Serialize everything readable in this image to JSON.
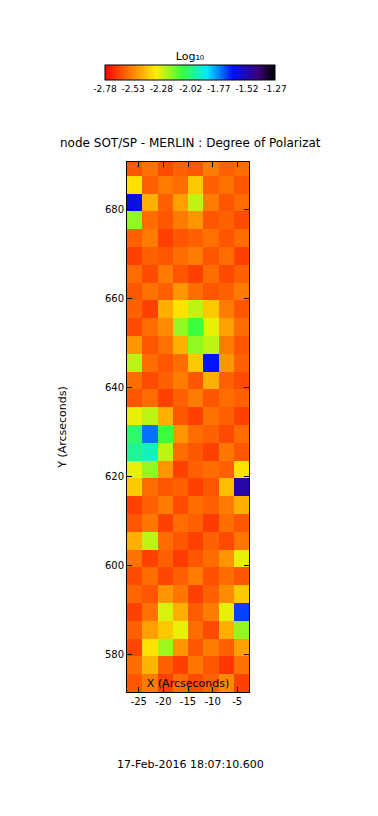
{
  "chart_data": {
    "type": "heatmap",
    "title": "node SOT/SP - MERLIN : Degree of Polarizat",
    "xlabel": "X (Arcseconds)",
    "ylabel": "Y (Arcseconds)",
    "annotations": [
      "17-Feb-2016 18:07:10.600"
    ],
    "xlim": [
      -27.4,
      -2.6
    ],
    "ylim": [
      571.5,
      690.6
    ],
    "xticks": [
      -25,
      -20,
      -15,
      -10,
      -5
    ],
    "yticks": [
      580,
      600,
      620,
      640,
      660,
      680
    ],
    "x": [
      -25.85,
      -22.75,
      -19.65,
      -16.55,
      -13.45,
      -10.35,
      -7.25,
      -4.15
    ],
    "y": [
      573.5,
      577.5,
      581.5,
      585.5,
      589.5,
      593.5,
      597.5,
      601.5,
      605.5,
      609.5,
      613.5,
      617.5,
      621.5,
      625.5,
      629.5,
      633.5,
      637.5,
      641.5,
      645.5,
      649.5,
      653.5,
      657.5,
      661.5,
      665.5,
      669.5,
      673.5,
      677.5,
      681.5,
      685.5,
      689.5
    ],
    "z": [
      [
        -2.62,
        -2.55,
        -2.66,
        -2.58,
        -2.64,
        -2.6,
        -2.52,
        -2.66
      ],
      [
        -2.58,
        -2.44,
        -2.6,
        -2.66,
        -2.56,
        -2.62,
        -2.68,
        -2.57
      ],
      [
        -2.65,
        -2.35,
        -2.22,
        -2.5,
        -2.62,
        -2.55,
        -2.6,
        -2.48
      ],
      [
        -2.6,
        -2.48,
        -2.4,
        -2.3,
        -2.58,
        -2.64,
        -2.45,
        -2.2
      ],
      [
        -2.66,
        -2.57,
        -2.28,
        -2.45,
        -2.61,
        -2.55,
        -2.3,
        -1.7
      ],
      [
        -2.59,
        -2.62,
        -2.5,
        -2.56,
        -2.66,
        -2.6,
        -2.52,
        -2.4
      ],
      [
        -2.64,
        -2.58,
        -2.65,
        -2.6,
        -2.55,
        -2.63,
        -2.58,
        -2.62
      ],
      [
        -2.57,
        -2.66,
        -2.6,
        -2.67,
        -2.62,
        -2.58,
        -2.5,
        -2.3
      ],
      [
        -2.45,
        -2.25,
        -2.58,
        -2.62,
        -2.66,
        -2.6,
        -2.64,
        -2.56
      ],
      [
        -2.62,
        -2.56,
        -2.66,
        -2.58,
        -2.6,
        -2.67,
        -2.58,
        -2.62
      ],
      [
        -2.66,
        -2.6,
        -2.55,
        -2.64,
        -2.58,
        -2.6,
        -2.55,
        -2.45
      ],
      [
        -2.4,
        -2.58,
        -2.62,
        -2.6,
        -2.66,
        -2.62,
        -2.42,
        -1.5
      ],
      [
        -2.3,
        -2.2,
        -2.5,
        -2.66,
        -2.6,
        -2.58,
        -2.6,
        -2.35
      ],
      [
        -2.0,
        -1.95,
        -2.25,
        -2.58,
        -2.62,
        -2.66,
        -2.56,
        -2.62
      ],
      [
        -2.05,
        -1.75,
        -2.1,
        -2.5,
        -2.58,
        -2.6,
        -2.64,
        -2.58
      ],
      [
        -2.3,
        -2.25,
        -2.45,
        -2.62,
        -2.66,
        -2.57,
        -2.6,
        -2.66
      ],
      [
        -2.62,
        -2.58,
        -2.66,
        -2.6,
        -2.55,
        -2.62,
        -2.58,
        -2.6
      ],
      [
        -2.58,
        -2.64,
        -2.6,
        -2.55,
        -2.62,
        -2.45,
        -2.6,
        -2.64
      ],
      [
        -2.25,
        -2.58,
        -2.62,
        -2.58,
        -2.4,
        -1.65,
        -2.5,
        -2.6
      ],
      [
        -2.5,
        -2.62,
        -2.57,
        -2.45,
        -2.2,
        -2.25,
        -2.55,
        -2.62
      ],
      [
        -2.64,
        -2.58,
        -2.52,
        -2.2,
        -2.1,
        -2.3,
        -2.48,
        -2.58
      ],
      [
        -2.6,
        -2.66,
        -2.45,
        -2.35,
        -2.25,
        -2.4,
        -2.55,
        -2.62
      ],
      [
        -2.62,
        -2.57,
        -2.6,
        -2.5,
        -2.58,
        -2.62,
        -2.6,
        -2.55
      ],
      [
        -2.58,
        -2.64,
        -2.55,
        -2.62,
        -2.66,
        -2.58,
        -2.64,
        -2.6
      ],
      [
        -2.66,
        -2.6,
        -2.62,
        -2.58,
        -2.55,
        -2.62,
        -2.58,
        -2.66
      ],
      [
        -2.6,
        -2.55,
        -2.66,
        -2.62,
        -2.6,
        -2.57,
        -2.62,
        -2.58
      ],
      [
        -2.2,
        -2.58,
        -2.62,
        -2.55,
        -2.5,
        -2.62,
        -2.6,
        -2.64
      ],
      [
        -1.6,
        -2.45,
        -2.6,
        -2.48,
        -2.25,
        -2.55,
        -2.62,
        -2.58
      ],
      [
        -2.35,
        -2.6,
        -2.55,
        -2.58,
        -2.4,
        -2.6,
        -2.57,
        -2.62
      ],
      [
        -2.62,
        -2.57,
        -2.64,
        -2.6,
        -2.62,
        -2.55,
        -2.6,
        -2.58
      ]
    ],
    "colorbar": {
      "title": "Log₁₀",
      "range": [
        -2.78,
        -1.27
      ],
      "ticks": [
        -2.78,
        -2.53,
        -2.28,
        -2.02,
        -1.77,
        -1.52,
        -1.27
      ]
    }
  }
}
